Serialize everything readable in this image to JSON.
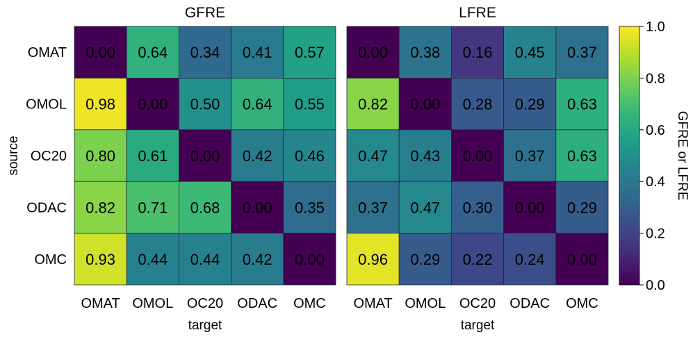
{
  "chart_data": {
    "type": "heatmap",
    "ylabel": "source",
    "rows": [
      "OMAT",
      "OMOL",
      "OC20",
      "ODAC",
      "OMC"
    ],
    "colorbar": {
      "label": "GFRE or LFRE",
      "range": [
        0.0,
        1.0
      ],
      "ticks": [
        "0.0",
        "0.2",
        "0.4",
        "0.6",
        "0.8",
        "1.0"
      ],
      "colormap": "viridis"
    },
    "panels": [
      {
        "title": "GFRE",
        "xlabel": "target",
        "columns": [
          "OMAT",
          "OMOL",
          "OC20",
          "ODAC",
          "OMC"
        ],
        "values": [
          [
            0.0,
            0.64,
            0.34,
            0.41,
            0.57
          ],
          [
            0.98,
            0.0,
            0.5,
            0.64,
            0.55
          ],
          [
            0.8,
            0.61,
            0.0,
            0.42,
            0.46
          ],
          [
            0.82,
            0.71,
            0.68,
            0.0,
            0.35
          ],
          [
            0.93,
            0.44,
            0.44,
            0.42,
            0.0
          ]
        ]
      },
      {
        "title": "LFRE",
        "xlabel": "target",
        "columns": [
          "OMAT",
          "OMOL",
          "OC20",
          "ODAC",
          "OMC"
        ],
        "values": [
          [
            0.0,
            0.38,
            0.16,
            0.45,
            0.37
          ],
          [
            0.82,
            0.0,
            0.28,
            0.29,
            0.63
          ],
          [
            0.47,
            0.43,
            0.0,
            0.37,
            0.63
          ],
          [
            0.37,
            0.47,
            0.3,
            0.0,
            0.29
          ],
          [
            0.96,
            0.29,
            0.22,
            0.24,
            0.0
          ]
        ]
      }
    ]
  }
}
